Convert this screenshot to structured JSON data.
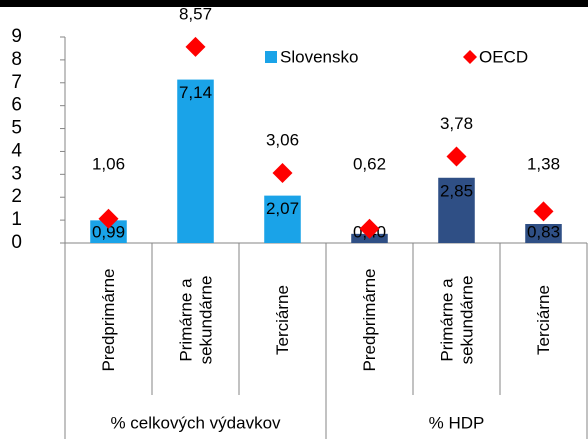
{
  "chart_data": {
    "type": "bar",
    "categories": [
      "Predprimárne",
      "Primárne a\nsekundárne",
      "Terciárne",
      "Predprimárne",
      "Primárne a\nsekundárne",
      "Terciárne"
    ],
    "groups": [
      "% celkových výdavkov",
      "% HDP"
    ],
    "series": [
      {
        "name": "Slovensko",
        "color": "#1aa3e8",
        "colors": [
          "#1aa3e8",
          "#1aa3e8",
          "#1aa3e8",
          "#2f4f85",
          "#2f4f85",
          "#2f4f85"
        ],
        "values": [
          0.99,
          7.14,
          2.07,
          0.4,
          2.85,
          0.83
        ],
        "value_labels": [
          "0,99",
          "7,14",
          "2,07",
          "0,40",
          "2,85",
          "0,83"
        ]
      },
      {
        "name": "OECD",
        "color": "#ff0000",
        "marker": "diamond",
        "values": [
          1.06,
          8.57,
          3.06,
          0.62,
          3.78,
          1.38
        ],
        "value_labels": [
          "1,06",
          "8,57",
          "3,06",
          "0,62",
          "3,78",
          "1,38"
        ]
      }
    ],
    "ylim": [
      0,
      9
    ],
    "yticks": [
      0,
      1,
      2,
      3,
      4,
      5,
      6,
      7,
      8,
      9
    ],
    "legend": "top-right"
  }
}
